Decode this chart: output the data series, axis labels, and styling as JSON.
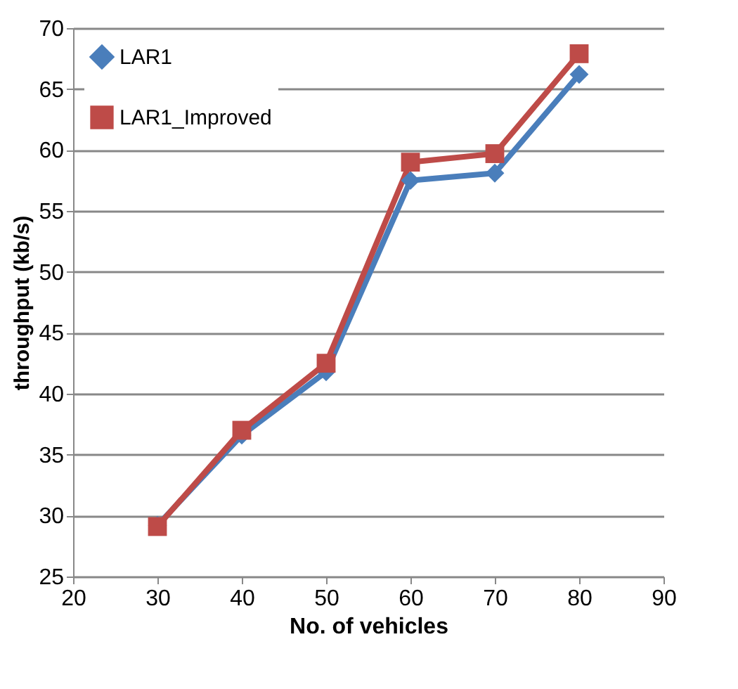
{
  "chart_data": {
    "type": "line",
    "xlabel": "No. of vehicles",
    "ylabel": "throughput (kb/s)",
    "x": [
      30,
      40,
      50,
      60,
      70,
      80
    ],
    "xlim": [
      20,
      90
    ],
    "xticks": [
      20,
      30,
      40,
      50,
      60,
      70,
      80,
      90
    ],
    "ylim": [
      25,
      70
    ],
    "yticks": [
      25,
      30,
      35,
      40,
      45,
      50,
      55,
      60,
      65,
      70
    ],
    "grid": "y",
    "legend": "top left",
    "series": [
      {
        "name": "LAR1",
        "color": "#4a7ebb",
        "marker": "diamond",
        "values": [
          29.2,
          36.6,
          41.8,
          57.5,
          58.1,
          66.2
        ]
      },
      {
        "name": "LAR1_Improved",
        "color": "#be4b48",
        "marker": "square",
        "values": [
          29.1,
          37.0,
          42.5,
          59.0,
          59.7,
          67.9
        ]
      }
    ]
  }
}
